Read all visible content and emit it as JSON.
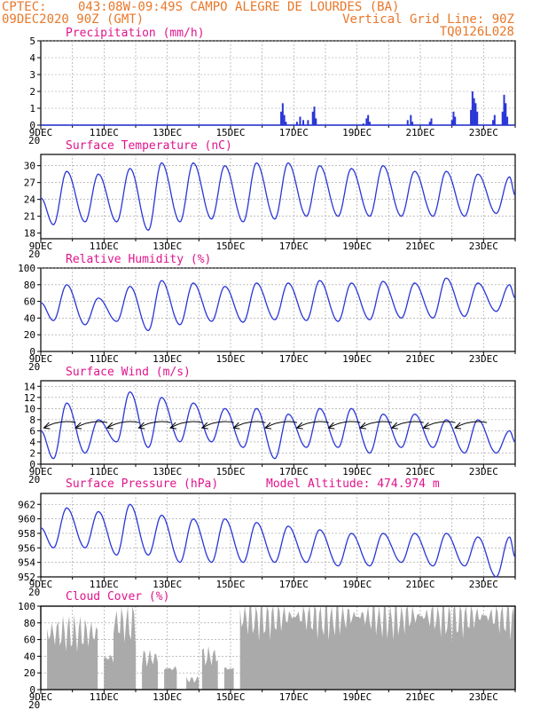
{
  "header": {
    "line1_left": "CPTEC:",
    "location": "043:08W-09:49S  CAMPO ALEGRE DE LOURDES (BA)",
    "line2_left": "09DEC2020 90Z (GMT)",
    "line2_right": "Vertical Grid Line: 90Z",
    "line3_right": "TQ0126L028"
  },
  "colors": {
    "header": "#e8782a",
    "title": "#e0148c",
    "line": "#2a36d6",
    "bars": "#2a36d6",
    "cloud": "#aaaaaa"
  },
  "x_axis": {
    "labels": [
      "9DEC",
      "11DEC",
      "13DEC",
      "15DEC",
      "17DEC",
      "19DEC",
      "21DEC",
      "23DEC"
    ],
    "label_days": [
      0,
      2,
      4,
      6,
      8,
      10,
      12,
      14
    ],
    "days_span": 15,
    "year_fragment": "20"
  },
  "chart_data": [
    {
      "type": "bar",
      "title": "Precipitation (mm/h)",
      "ylim": [
        0,
        5
      ],
      "yticks": [
        0,
        1,
        2,
        3,
        4,
        5
      ],
      "grid": true,
      "events": [
        {
          "day": 7.6,
          "v": 0.8
        },
        {
          "day": 7.65,
          "v": 1.3
        },
        {
          "day": 7.7,
          "v": 0.6
        },
        {
          "day": 7.75,
          "v": 0.2
        },
        {
          "day": 8.1,
          "v": 0.2
        },
        {
          "day": 8.2,
          "v": 0.5
        },
        {
          "day": 8.3,
          "v": 0.3
        },
        {
          "day": 8.45,
          "v": 0.3
        },
        {
          "day": 8.6,
          "v": 0.8
        },
        {
          "day": 8.65,
          "v": 1.1
        },
        {
          "day": 8.7,
          "v": 0.4
        },
        {
          "day": 10.2,
          "v": 0.1
        },
        {
          "day": 10.3,
          "v": 0.4
        },
        {
          "day": 10.35,
          "v": 0.6
        },
        {
          "day": 10.4,
          "v": 0.2
        },
        {
          "day": 11.6,
          "v": 0.3
        },
        {
          "day": 11.7,
          "v": 0.6
        },
        {
          "day": 11.75,
          "v": 0.2
        },
        {
          "day": 12.3,
          "v": 0.2
        },
        {
          "day": 12.35,
          "v": 0.4
        },
        {
          "day": 13.0,
          "v": 0.3
        },
        {
          "day": 13.05,
          "v": 0.8
        },
        {
          "day": 13.1,
          "v": 0.5
        },
        {
          "day": 13.6,
          "v": 0.9
        },
        {
          "day": 13.65,
          "v": 2.0
        },
        {
          "day": 13.7,
          "v": 1.6
        },
        {
          "day": 13.75,
          "v": 1.3
        },
        {
          "day": 13.8,
          "v": 0.8
        },
        {
          "day": 14.3,
          "v": 0.3
        },
        {
          "day": 14.35,
          "v": 0.6
        },
        {
          "day": 14.6,
          "v": 0.8
        },
        {
          "day": 14.65,
          "v": 1.8
        },
        {
          "day": 14.7,
          "v": 1.3
        },
        {
          "day": 14.75,
          "v": 0.5
        }
      ]
    },
    {
      "type": "line",
      "title": "Surface Temperature (nC)",
      "ylim": [
        17,
        32
      ],
      "yticks": [
        18,
        21,
        24,
        27,
        30
      ],
      "grid": true,
      "daily": [
        {
          "day": 0.4,
          "max": 29,
          "min": 19.5
        },
        {
          "day": 1.4,
          "max": 28.5,
          "min": 20
        },
        {
          "day": 2.4,
          "max": 29.5,
          "min": 20
        },
        {
          "day": 3.4,
          "max": 30.5,
          "min": 18.5
        },
        {
          "day": 4.4,
          "max": 30.5,
          "min": 20
        },
        {
          "day": 5.4,
          "max": 30,
          "min": 20.5
        },
        {
          "day": 6.4,
          "max": 30.5,
          "min": 20
        },
        {
          "day": 7.4,
          "max": 30.5,
          "min": 20.5
        },
        {
          "day": 8.4,
          "max": 30,
          "min": 21
        },
        {
          "day": 9.4,
          "max": 29.5,
          "min": 21
        },
        {
          "day": 10.4,
          "max": 30,
          "min": 21
        },
        {
          "day": 11.4,
          "max": 29,
          "min": 21
        },
        {
          "day": 12.4,
          "max": 29,
          "min": 21
        },
        {
          "day": 13.4,
          "max": 28.5,
          "min": 21
        },
        {
          "day": 14.4,
          "max": 28,
          "min": 21.5
        }
      ]
    },
    {
      "type": "line",
      "title": "Relative Humidity (%)",
      "ylim": [
        0,
        100
      ],
      "yticks": [
        0,
        20,
        40,
        60,
        80,
        100
      ],
      "grid": true,
      "daily": [
        {
          "day": 0.4,
          "max": 80,
          "min": 37
        },
        {
          "day": 1.4,
          "max": 64,
          "min": 32
        },
        {
          "day": 2.4,
          "max": 78,
          "min": 36
        },
        {
          "day": 3.4,
          "max": 85,
          "min": 25
        },
        {
          "day": 4.4,
          "max": 82,
          "min": 32
        },
        {
          "day": 5.4,
          "max": 78,
          "min": 36
        },
        {
          "day": 6.4,
          "max": 82,
          "min": 35
        },
        {
          "day": 7.4,
          "max": 82,
          "min": 38
        },
        {
          "day": 8.4,
          "max": 85,
          "min": 37
        },
        {
          "day": 9.4,
          "max": 82,
          "min": 36
        },
        {
          "day": 10.4,
          "max": 84,
          "min": 38
        },
        {
          "day": 11.4,
          "max": 82,
          "min": 40
        },
        {
          "day": 12.4,
          "max": 88,
          "min": 40
        },
        {
          "day": 13.4,
          "max": 82,
          "min": 42
        },
        {
          "day": 14.4,
          "max": 80,
          "min": 48
        }
      ]
    },
    {
      "type": "line",
      "title": "Surface Wind (m/s)",
      "ylim": [
        0,
        15
      ],
      "yticks": [
        0,
        2,
        4,
        6,
        8,
        10,
        12,
        14
      ],
      "grid": true,
      "daily": [
        {
          "day": 0.4,
          "max": 11,
          "min": 1
        },
        {
          "day": 1.4,
          "max": 8,
          "min": 2
        },
        {
          "day": 2.4,
          "max": 13,
          "min": 4
        },
        {
          "day": 3.4,
          "max": 12,
          "min": 3
        },
        {
          "day": 4.4,
          "max": 11,
          "min": 4
        },
        {
          "day": 5.4,
          "max": 10,
          "min": 4
        },
        {
          "day": 6.4,
          "max": 10,
          "min": 3
        },
        {
          "day": 7.4,
          "max": 9,
          "min": 1
        },
        {
          "day": 8.4,
          "max": 10,
          "min": 3
        },
        {
          "day": 9.4,
          "max": 10,
          "min": 3
        },
        {
          "day": 10.4,
          "max": 9,
          "min": 2
        },
        {
          "day": 11.4,
          "max": 9,
          "min": 3
        },
        {
          "day": 12.4,
          "max": 8,
          "min": 3
        },
        {
          "day": 13.4,
          "max": 8,
          "min": 2
        },
        {
          "day": 14.4,
          "max": 6,
          "min": 2
        }
      ],
      "wind_vectors": {
        "level": 7,
        "direction": "from east",
        "count": 14
      }
    },
    {
      "type": "line",
      "title": "Surface Pressure (hPa)",
      "subtitle": "Model Altitude: 474.974 m",
      "ylim": [
        952,
        963.5
      ],
      "yticks": [
        952,
        954,
        956,
        958,
        960,
        962
      ],
      "grid": true,
      "daily": [
        {
          "day": 0.4,
          "max": 961.5,
          "min": 956
        },
        {
          "day": 1.4,
          "max": 961,
          "min": 956
        },
        {
          "day": 2.4,
          "max": 962,
          "min": 955
        },
        {
          "day": 3.4,
          "max": 960.5,
          "min": 955
        },
        {
          "day": 4.4,
          "max": 960,
          "min": 954
        },
        {
          "day": 5.4,
          "max": 960,
          "min": 954
        },
        {
          "day": 6.4,
          "max": 959.5,
          "min": 954
        },
        {
          "day": 7.4,
          "max": 959,
          "min": 954
        },
        {
          "day": 8.4,
          "max": 958.5,
          "min": 954
        },
        {
          "day": 9.4,
          "max": 958,
          "min": 953.5
        },
        {
          "day": 10.4,
          "max": 958,
          "min": 953.5
        },
        {
          "day": 11.4,
          "max": 958,
          "min": 954
        },
        {
          "day": 12.4,
          "max": 958,
          "min": 953.5
        },
        {
          "day": 13.4,
          "max": 957.5,
          "min": 953.5
        },
        {
          "day": 14.4,
          "max": 957.5,
          "min": 952
        }
      ]
    },
    {
      "type": "area",
      "title": "Cloud Cover (%)",
      "ylim": [
        0,
        100
      ],
      "yticks": [
        0,
        20,
        40,
        60,
        80,
        100
      ],
      "grid": true,
      "segments": [
        {
          "start": 0.2,
          "end": 1.8,
          "level": 68
        },
        {
          "start": 2.0,
          "end": 2.3,
          "level": 38
        },
        {
          "start": 2.3,
          "end": 3.0,
          "level": 80
        },
        {
          "start": 3.2,
          "end": 3.7,
          "level": 38
        },
        {
          "start": 3.9,
          "end": 4.3,
          "level": 25
        },
        {
          "start": 4.6,
          "end": 5.0,
          "level": 12
        },
        {
          "start": 5.1,
          "end": 5.6,
          "level": 40
        },
        {
          "start": 5.8,
          "end": 6.1,
          "level": 25
        },
        {
          "start": 6.3,
          "end": 15.0,
          "level": 88
        }
      ]
    }
  ]
}
